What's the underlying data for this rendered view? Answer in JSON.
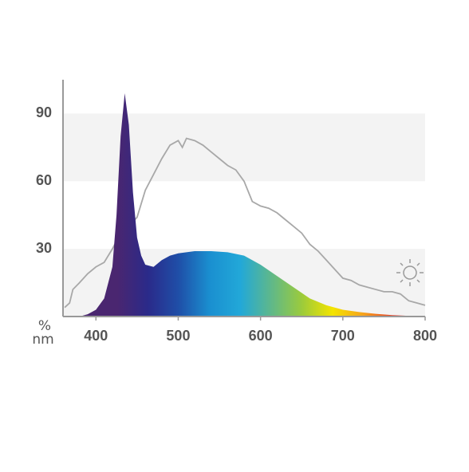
{
  "chart_data": {
    "type": "area",
    "xlabel": "nm",
    "ylabel": "%",
    "xlim": [
      360,
      800
    ],
    "ylim": [
      0,
      105
    ],
    "xticks": [
      400,
      500,
      600,
      700,
      800
    ],
    "yticks": [
      30,
      60,
      90
    ],
    "bands": true,
    "band_color": "#f3f3f3",
    "series": [
      {
        "kind": "area",
        "colors": [
          "#4a2670",
          "#2a2a8a",
          "#1f4fa8",
          "#1a8fd0",
          "#22a8d8",
          "#5fb88a",
          "#9ccb3b",
          "#f4e400",
          "#f6a21c",
          "#e8361f",
          "#c8102e"
        ],
        "x": [
          360,
          380,
          390,
          400,
          410,
          420,
          425,
          430,
          435,
          440,
          445,
          450,
          455,
          460,
          470,
          480,
          490,
          500,
          520,
          540,
          560,
          580,
          600,
          620,
          640,
          660,
          680,
          700,
          720,
          740,
          760,
          780,
          800
        ],
        "values": [
          0,
          0,
          1,
          3,
          8,
          22,
          45,
          80,
          99,
          85,
          55,
          35,
          27,
          23,
          22,
          25,
          27,
          28,
          29,
          29,
          28.5,
          27,
          23,
          18,
          13,
          8,
          5,
          3,
          2,
          1.2,
          0.6,
          0.3,
          0
        ]
      },
      {
        "kind": "line",
        "color": "#a8a8a8",
        "x": [
          362,
          368,
          372,
          380,
          390,
          400,
          410,
          420,
          430,
          440,
          450,
          460,
          470,
          480,
          490,
          500,
          505,
          510,
          520,
          530,
          540,
          550,
          560,
          570,
          580,
          590,
          600,
          610,
          620,
          630,
          640,
          650,
          660,
          670,
          680,
          690,
          700,
          710,
          720,
          730,
          740,
          750,
          760,
          770,
          780,
          790,
          800
        ],
        "values": [
          4,
          6,
          12,
          15,
          19,
          22,
          24,
          30,
          37,
          40,
          44,
          56,
          63,
          70,
          76,
          78,
          75,
          79,
          78,
          76,
          73,
          70,
          67,
          65,
          60,
          51,
          49,
          48,
          46,
          43,
          40,
          37,
          32,
          29,
          25,
          21,
          17,
          16,
          14,
          13,
          12,
          11,
          11,
          10,
          7,
          6,
          5
        ]
      }
    ]
  }
}
